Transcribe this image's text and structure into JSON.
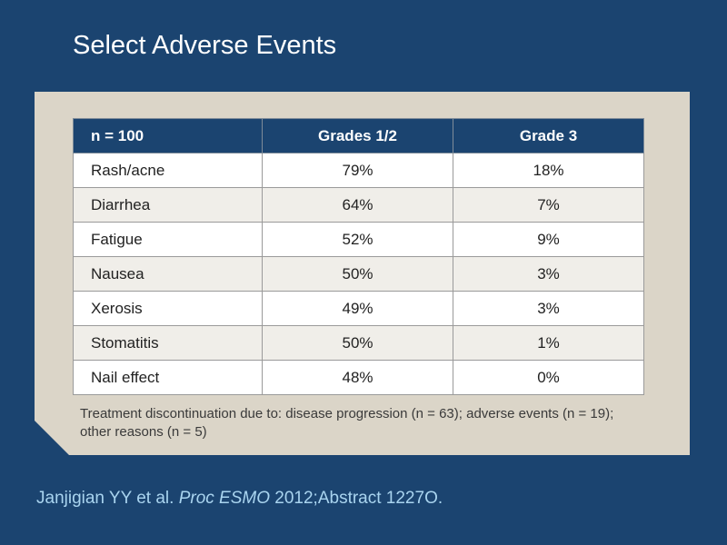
{
  "title": "Select Adverse Events",
  "table": {
    "headers": [
      "n = 100",
      "Grades 1/2",
      "Grade 3"
    ],
    "rows": [
      [
        "Rash/acne",
        "79%",
        "18%"
      ],
      [
        "Diarrhea",
        "64%",
        "7%"
      ],
      [
        "Fatigue",
        "52%",
        "9%"
      ],
      [
        "Nausea",
        "50%",
        "3%"
      ],
      [
        "Xerosis",
        "49%",
        "3%"
      ],
      [
        "Stomatitis",
        "50%",
        "1%"
      ],
      [
        "Nail effect",
        "48%",
        "0%"
      ]
    ]
  },
  "footnote": "Treatment discontinuation due to: disease progression (n = 63); adverse events (n = 19); other reasons (n = 5)",
  "citation": {
    "authors": "Janjigian YY et al. ",
    "journal": "Proc ESMO",
    "details": " 2012;Abstract 1227O."
  },
  "colors": {
    "background": "#1b4470",
    "panel": "#dbd5c8",
    "citation": "#a9d4ef"
  }
}
